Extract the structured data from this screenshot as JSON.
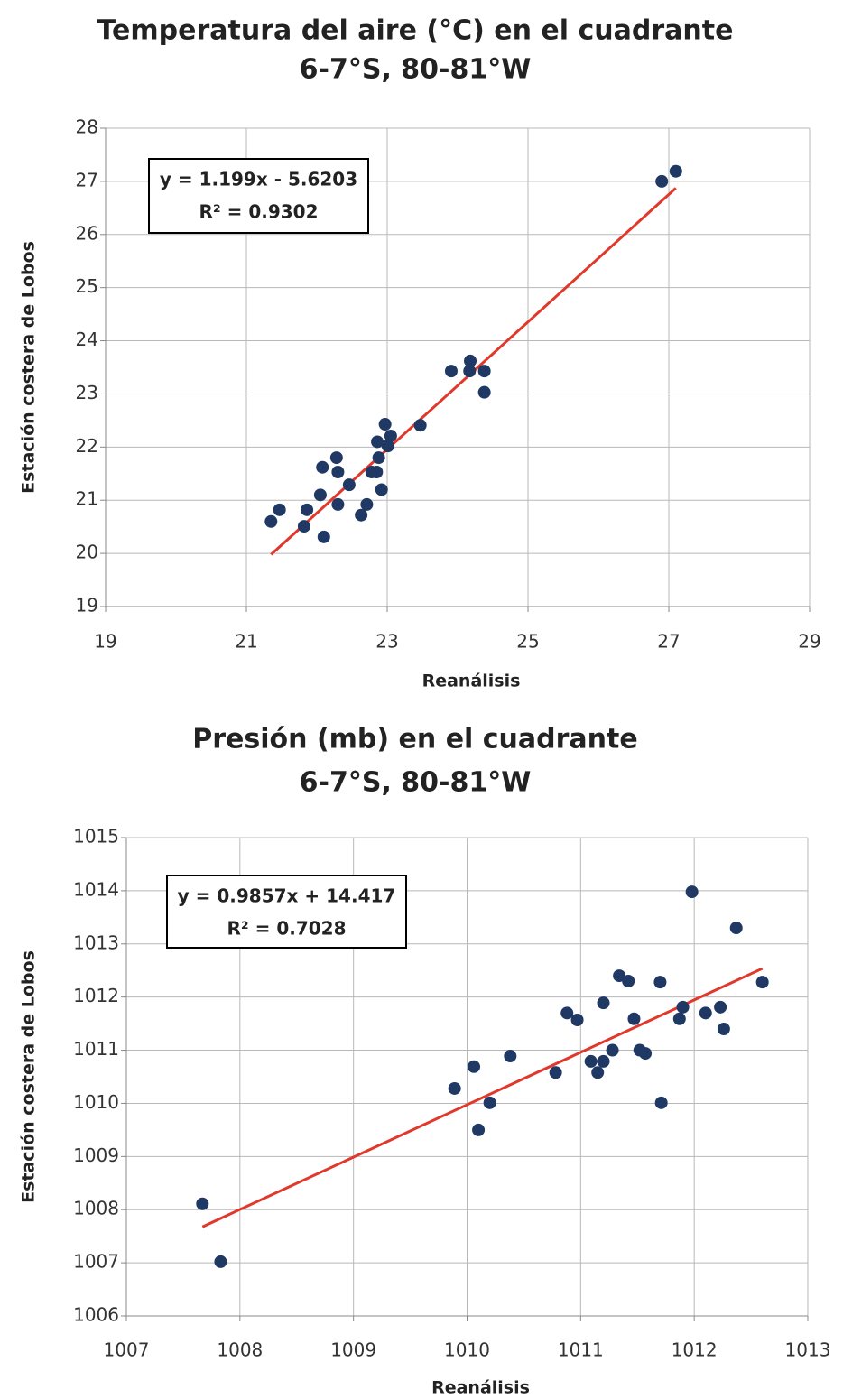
{
  "chart_data": [
    {
      "type": "scatter",
      "title": "Temperatura del aire (°C) en el cuadrante",
      "subtitle": "6-7°S, 80-81°W",
      "x_label": "Reanálisis",
      "y_label": "Estación costera de Lobos",
      "annotations": [
        "y = 1.199x - 5.6203",
        "R² = 0.9302"
      ],
      "x": [
        21.35,
        21.47,
        21.86,
        21.82,
        22.05,
        22.08,
        22.1,
        22.28,
        22.3,
        22.3,
        22.46,
        22.63,
        22.71,
        22.78,
        22.85,
        22.86,
        22.88,
        22.92,
        22.97,
        23.01,
        23.05,
        23.47,
        23.91,
        24.17,
        24.18,
        24.38,
        24.38,
        26.9,
        27.1
      ],
      "values": [
        20.6,
        20.82,
        20.82,
        20.51,
        21.1,
        21.62,
        20.31,
        21.8,
        21.53,
        20.92,
        21.29,
        20.72,
        20.92,
        21.53,
        21.53,
        22.1,
        21.8,
        21.2,
        22.43,
        22.02,
        22.21,
        22.41,
        23.43,
        23.43,
        23.62,
        23.43,
        23.03,
        27.0,
        27.19
      ],
      "color": "#1f3864",
      "trendline": {
        "slope": 1.199,
        "intercept": -5.6203,
        "color": "#e0392b"
      },
      "xlim": [
        19,
        29
      ],
      "xticks": [
        19,
        21,
        23,
        25,
        27,
        29
      ],
      "ylim": [
        19,
        28
      ],
      "yticks": [
        19,
        20,
        21,
        22,
        23,
        24,
        25,
        26,
        27,
        28
      ],
      "grid": true
    },
    {
      "type": "scatter",
      "title": "Presión (mb) en el cuadrante",
      "subtitle": "6-7°S, 80-81°W",
      "x_label": "Reanálisis",
      "y_label": "Estación costera de Lobos",
      "annotations": [
        "y = 0.9857x + 14.417",
        "R² = 0.7028"
      ],
      "x": [
        1007.67,
        1007.83,
        1009.89,
        1010.06,
        1010.1,
        1010.2,
        1010.38,
        1010.78,
        1010.88,
        1010.97,
        1011.09,
        1011.15,
        1011.2,
        1011.2,
        1011.28,
        1011.34,
        1011.42,
        1011.47,
        1011.52,
        1011.57,
        1011.7,
        1011.71,
        1011.87,
        1011.9,
        1011.98,
        1012.1,
        1012.23,
        1012.26,
        1012.37,
        1012.6
      ],
      "values": [
        1008.11,
        1007.02,
        1010.28,
        1010.69,
        1009.5,
        1010.01,
        1010.89,
        1010.58,
        1011.7,
        1011.57,
        1010.79,
        1010.58,
        1011.89,
        1010.79,
        1011.0,
        1012.4,
        1012.3,
        1011.59,
        1011.0,
        1010.94,
        1012.28,
        1010.01,
        1011.59,
        1011.81,
        1013.98,
        1011.7,
        1011.81,
        1011.4,
        1013.3,
        1012.28
      ],
      "color": "#1f3864",
      "trendline": {
        "slope": 0.9857,
        "intercept": 14.417,
        "color": "#e0392b"
      },
      "xlim": [
        1007,
        1013
      ],
      "xticks": [
        1007,
        1008,
        1009,
        1010,
        1011,
        1012,
        1013
      ],
      "ylim": [
        1006,
        1015
      ],
      "yticks": [
        1006,
        1007,
        1008,
        1009,
        1010,
        1011,
        1012,
        1013,
        1014,
        1015
      ],
      "grid": true
    }
  ]
}
